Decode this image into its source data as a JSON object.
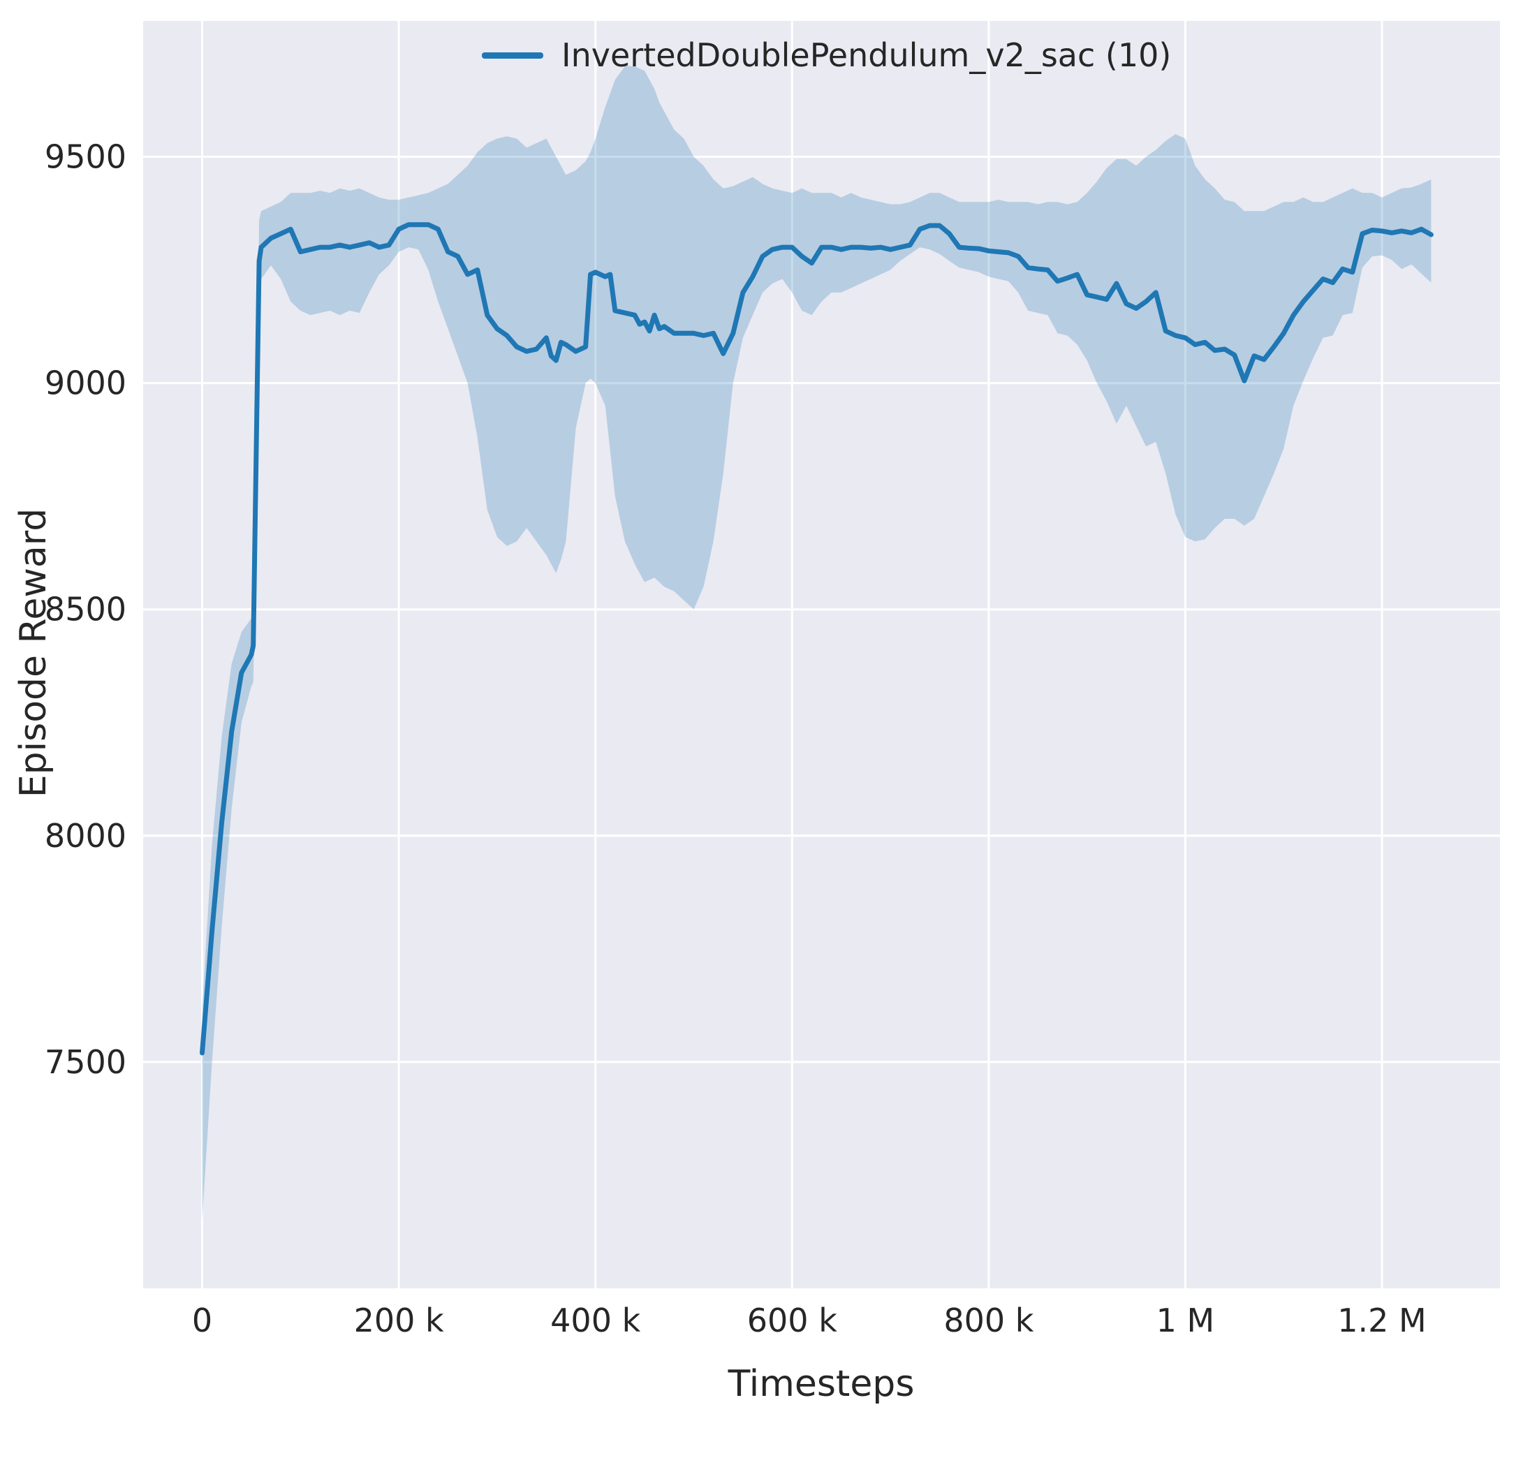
{
  "chart_data": {
    "type": "line",
    "title": "",
    "xlabel": "Timesteps",
    "ylabel": "Episode Reward",
    "xlim": [
      -60000,
      1320000
    ],
    "ylim": [
      7000,
      9800
    ],
    "grid": true,
    "legend_position": "upper center",
    "panel_background": "#eaeaf2",
    "grid_color": "#ffffff",
    "text_color": "#262626",
    "x_ticks": [
      0,
      200000,
      400000,
      600000,
      800000,
      1000000,
      1200000
    ],
    "x_tick_labels": [
      "0",
      "200 k",
      "400 k",
      "600 k",
      "800 k",
      "1 M",
      "1.2 M"
    ],
    "y_ticks": [
      7500,
      8000,
      8500,
      9000,
      9500
    ],
    "y_tick_labels": [
      "7500",
      "8000",
      "8500",
      "9000",
      "9500"
    ],
    "point_format": [
      "x",
      "mean",
      "lower",
      "upper"
    ],
    "series": [
      {
        "name": "InvertedDoublePendulum_v2_sac (10)",
        "color": "#1f77b4",
        "band_color": "rgba(31,119,180,0.25)",
        "points": [
          [
            0,
            7520,
            7150,
            7620
          ],
          [
            10000,
            7790,
            7500,
            7980
          ],
          [
            20000,
            8030,
            7800,
            8220
          ],
          [
            30000,
            8230,
            8060,
            8380
          ],
          [
            40000,
            8360,
            8250,
            8450
          ],
          [
            50000,
            8400,
            8330,
            8480
          ],
          [
            52000,
            8420,
            8340,
            8500
          ],
          [
            58000,
            9270,
            9160,
            9360
          ],
          [
            60000,
            9300,
            9230,
            9380
          ],
          [
            70000,
            9320,
            9260,
            9390
          ],
          [
            80000,
            9330,
            9230,
            9400
          ],
          [
            90000,
            9340,
            9180,
            9420
          ],
          [
            100000,
            9290,
            9160,
            9420
          ],
          [
            110000,
            9295,
            9150,
            9420
          ],
          [
            120000,
            9300,
            9155,
            9425
          ],
          [
            130000,
            9300,
            9160,
            9420
          ],
          [
            140000,
            9305,
            9150,
            9430
          ],
          [
            150000,
            9300,
            9160,
            9425
          ],
          [
            160000,
            9305,
            9155,
            9430
          ],
          [
            170000,
            9310,
            9200,
            9420
          ],
          [
            180000,
            9300,
            9240,
            9410
          ],
          [
            190000,
            9305,
            9260,
            9405
          ],
          [
            200000,
            9340,
            9290,
            9405
          ],
          [
            210000,
            9350,
            9300,
            9410
          ],
          [
            220000,
            9350,
            9295,
            9415
          ],
          [
            230000,
            9350,
            9250,
            9420
          ],
          [
            240000,
            9340,
            9180,
            9430
          ],
          [
            250000,
            9290,
            9120,
            9440
          ],
          [
            260000,
            9280,
            9060,
            9460
          ],
          [
            270000,
            9240,
            9000,
            9480
          ],
          [
            280000,
            9250,
            8880,
            9510
          ],
          [
            290000,
            9150,
            8720,
            9530
          ],
          [
            300000,
            9120,
            8660,
            9540
          ],
          [
            310000,
            9105,
            8640,
            9545
          ],
          [
            320000,
            9080,
            8650,
            9540
          ],
          [
            330000,
            9070,
            8680,
            9520
          ],
          [
            340000,
            9075,
            8650,
            9530
          ],
          [
            350000,
            9100,
            8620,
            9540
          ],
          [
            355000,
            9060,
            8600,
            9520
          ],
          [
            360000,
            9050,
            8580,
            9500
          ],
          [
            365000,
            9090,
            8610,
            9480
          ],
          [
            370000,
            9085,
            8650,
            9460
          ],
          [
            380000,
            9070,
            8900,
            9470
          ],
          [
            390000,
            9080,
            9000,
            9490
          ],
          [
            395000,
            9240,
            9010,
            9510
          ],
          [
            400000,
            9245,
            9000,
            9540
          ],
          [
            410000,
            9235,
            8950,
            9610
          ],
          [
            415000,
            9240,
            8850,
            9640
          ],
          [
            420000,
            9160,
            8750,
            9670
          ],
          [
            430000,
            9155,
            8650,
            9700
          ],
          [
            440000,
            9150,
            8600,
            9700
          ],
          [
            445000,
            9130,
            8580,
            9695
          ],
          [
            450000,
            9135,
            8560,
            9690
          ],
          [
            455000,
            9115,
            8565,
            9670
          ],
          [
            460000,
            9150,
            8570,
            9650
          ],
          [
            465000,
            9120,
            8560,
            9620
          ],
          [
            470000,
            9125,
            8550,
            9600
          ],
          [
            480000,
            9110,
            8540,
            9560
          ],
          [
            490000,
            9110,
            8520,
            9540
          ],
          [
            500000,
            9110,
            8500,
            9500
          ],
          [
            510000,
            9105,
            8550,
            9480
          ],
          [
            520000,
            9110,
            8650,
            9450
          ],
          [
            530000,
            9065,
            8800,
            9430
          ],
          [
            540000,
            9110,
            9000,
            9435
          ],
          [
            550000,
            9200,
            9100,
            9445
          ],
          [
            560000,
            9235,
            9150,
            9455
          ],
          [
            570000,
            9280,
            9200,
            9440
          ],
          [
            580000,
            9295,
            9220,
            9430
          ],
          [
            590000,
            9300,
            9230,
            9425
          ],
          [
            600000,
            9300,
            9200,
            9420
          ],
          [
            610000,
            9280,
            9160,
            9430
          ],
          [
            620000,
            9265,
            9150,
            9420
          ],
          [
            630000,
            9300,
            9180,
            9420
          ],
          [
            640000,
            9300,
            9200,
            9420
          ],
          [
            650000,
            9295,
            9200,
            9410
          ],
          [
            660000,
            9300,
            9210,
            9420
          ],
          [
            670000,
            9300,
            9220,
            9410
          ],
          [
            680000,
            9298,
            9230,
            9405
          ],
          [
            690000,
            9300,
            9240,
            9400
          ],
          [
            700000,
            9295,
            9250,
            9395
          ],
          [
            710000,
            9300,
            9270,
            9395
          ],
          [
            720000,
            9305,
            9285,
            9400
          ],
          [
            730000,
            9340,
            9300,
            9410
          ],
          [
            740000,
            9348,
            9295,
            9420
          ],
          [
            750000,
            9348,
            9285,
            9420
          ],
          [
            760000,
            9330,
            9270,
            9410
          ],
          [
            770000,
            9300,
            9255,
            9400
          ],
          [
            780000,
            9298,
            9250,
            9400
          ],
          [
            790000,
            9297,
            9245,
            9400
          ],
          [
            800000,
            9292,
            9235,
            9400
          ],
          [
            810000,
            9290,
            9230,
            9405
          ],
          [
            820000,
            9288,
            9225,
            9400
          ],
          [
            830000,
            9280,
            9200,
            9400
          ],
          [
            840000,
            9255,
            9160,
            9400
          ],
          [
            850000,
            9252,
            9155,
            9395
          ],
          [
            860000,
            9250,
            9150,
            9400
          ],
          [
            870000,
            9225,
            9110,
            9400
          ],
          [
            880000,
            9232,
            9105,
            9395
          ],
          [
            890000,
            9240,
            9085,
            9400
          ],
          [
            900000,
            9195,
            9050,
            9420
          ],
          [
            910000,
            9190,
            9000,
            9445
          ],
          [
            920000,
            9185,
            8960,
            9475
          ],
          [
            930000,
            9220,
            8910,
            9495
          ],
          [
            940000,
            9175,
            8950,
            9495
          ],
          [
            950000,
            9165,
            8905,
            9480
          ],
          [
            960000,
            9180,
            8860,
            9500
          ],
          [
            970000,
            9200,
            8870,
            9515
          ],
          [
            980000,
            9115,
            8800,
            9535
          ],
          [
            990000,
            9105,
            8710,
            9550
          ],
          [
            1000000,
            9100,
            8660,
            9540
          ],
          [
            1010000,
            9085,
            8650,
            9480
          ],
          [
            1020000,
            9090,
            8655,
            9450
          ],
          [
            1030000,
            9072,
            8680,
            9430
          ],
          [
            1040000,
            9075,
            8700,
            9405
          ],
          [
            1050000,
            9062,
            8700,
            9400
          ],
          [
            1060000,
            9005,
            8685,
            9380
          ],
          [
            1070000,
            9060,
            8700,
            9380
          ],
          [
            1080000,
            9052,
            8750,
            9380
          ],
          [
            1090000,
            9080,
            8800,
            9390
          ],
          [
            1100000,
            9110,
            8855,
            9400
          ],
          [
            1110000,
            9150,
            8950,
            9400
          ],
          [
            1120000,
            9180,
            9005,
            9410
          ],
          [
            1130000,
            9205,
            9055,
            9400
          ],
          [
            1140000,
            9230,
            9100,
            9400
          ],
          [
            1150000,
            9222,
            9105,
            9410
          ],
          [
            1160000,
            9252,
            9150,
            9420
          ],
          [
            1170000,
            9245,
            9155,
            9430
          ],
          [
            1180000,
            9330,
            9255,
            9420
          ],
          [
            1190000,
            9338,
            9280,
            9420
          ],
          [
            1200000,
            9336,
            9282,
            9410
          ],
          [
            1210000,
            9332,
            9272,
            9420
          ],
          [
            1220000,
            9336,
            9252,
            9430
          ],
          [
            1230000,
            9332,
            9262,
            9432
          ],
          [
            1240000,
            9340,
            9242,
            9440
          ],
          [
            1250000,
            9328,
            9222,
            9450
          ]
        ]
      }
    ]
  }
}
